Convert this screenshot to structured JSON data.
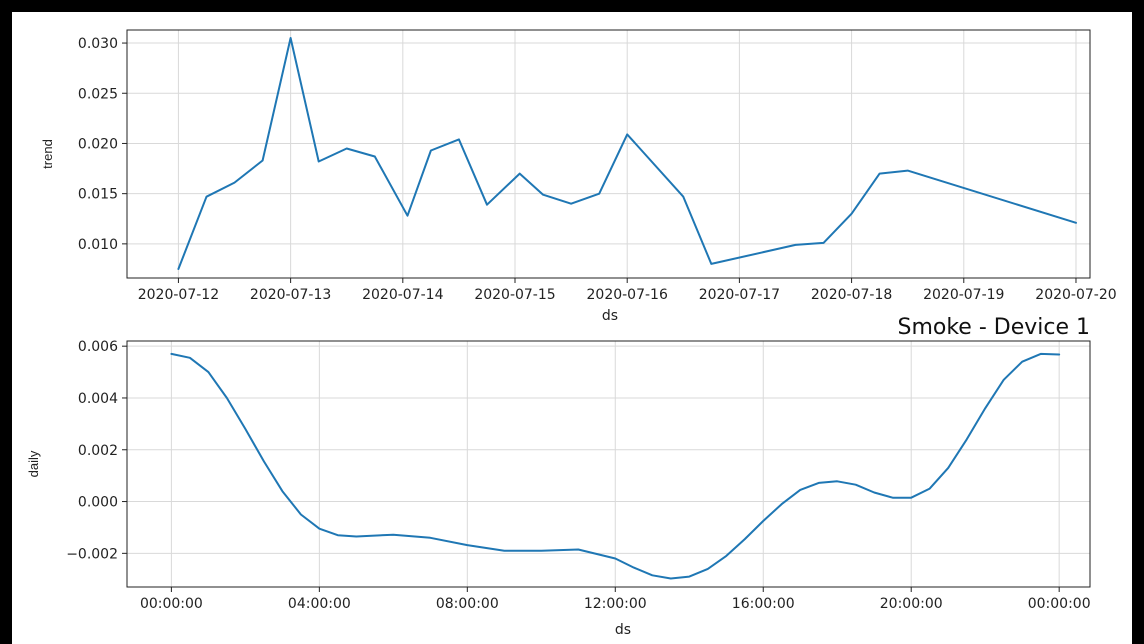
{
  "accent_color": "#1f77b4",
  "chart_data": [
    {
      "type": "line",
      "xlabel": "ds",
      "ylabel": "trend",
      "x_type": "date",
      "x_ticks": [
        "2020-07-12",
        "2020-07-13",
        "2020-07-14",
        "2020-07-15",
        "2020-07-16",
        "2020-07-17",
        "2020-07-18",
        "2020-07-19",
        "2020-07-20"
      ],
      "y_ticks": [
        "0.010",
        "0.015",
        "0.020",
        "0.025",
        "0.030"
      ],
      "xlim": [
        "2020-07-11 13:00",
        "2020-07-20 03:00"
      ],
      "ylim": [
        0.0066,
        0.0313
      ],
      "grid": true,
      "series": [
        {
          "color": "#1f77b4",
          "points": [
            [
              "2020-07-12 00:00",
              0.0075
            ],
            [
              "2020-07-12 06:00",
              0.0147
            ],
            [
              "2020-07-12 12:00",
              0.0161
            ],
            [
              "2020-07-12 18:00",
              0.0183
            ],
            [
              "2020-07-13 00:00",
              0.0305
            ],
            [
              "2020-07-13 06:00",
              0.0182
            ],
            [
              "2020-07-13 12:00",
              0.0195
            ],
            [
              "2020-07-13 18:00",
              0.0187
            ],
            [
              "2020-07-14 01:00",
              0.0128
            ],
            [
              "2020-07-14 06:00",
              0.0193
            ],
            [
              "2020-07-14 12:00",
              0.0204
            ],
            [
              "2020-07-14 18:00",
              0.0139
            ],
            [
              "2020-07-15 01:00",
              0.017
            ],
            [
              "2020-07-15 06:00",
              0.0149
            ],
            [
              "2020-07-15 12:00",
              0.014
            ],
            [
              "2020-07-15 18:00",
              0.015
            ],
            [
              "2020-07-16 00:00",
              0.0209
            ],
            [
              "2020-07-16 12:00",
              0.0147
            ],
            [
              "2020-07-16 18:00",
              0.008
            ],
            [
              "2020-07-17 12:00",
              0.0099
            ],
            [
              "2020-07-17 18:00",
              0.0101
            ],
            [
              "2020-07-18 00:00",
              0.013
            ],
            [
              "2020-07-18 06:00",
              0.017
            ],
            [
              "2020-07-18 12:00",
              0.0173
            ],
            [
              "2020-07-20 00:00",
              0.0121
            ]
          ]
        }
      ]
    },
    {
      "type": "line",
      "title": "Smoke - Device 1",
      "xlabel": "ds",
      "ylabel": "daily",
      "x_type": "time-of-day",
      "x_ticks": [
        "00:00:00",
        "04:00:00",
        "08:00:00",
        "12:00:00",
        "16:00:00",
        "20:00:00",
        "00:00:00"
      ],
      "y_ticks": [
        "−0.002",
        "0.000",
        "0.002",
        "0.004",
        "0.006"
      ],
      "xlim": [
        "-1:12",
        "24:50"
      ],
      "ylim": [
        -0.0033,
        0.0062
      ],
      "grid": true,
      "series": [
        {
          "color": "#1f77b4",
          "points": [
            [
              "00:00",
              0.0057
            ],
            [
              "00:30",
              0.00555
            ],
            [
              "01:00",
              0.005
            ],
            [
              "01:30",
              0.004
            ],
            [
              "02:00",
              0.0028
            ],
            [
              "02:30",
              0.00155
            ],
            [
              "03:00",
              0.0004
            ],
            [
              "03:30",
              -0.0005
            ],
            [
              "04:00",
              -0.00105
            ],
            [
              "04:30",
              -0.0013
            ],
            [
              "05:00",
              -0.00135
            ],
            [
              "06:00",
              -0.00128
            ],
            [
              "07:00",
              -0.0014
            ],
            [
              "08:00",
              -0.00168
            ],
            [
              "09:00",
              -0.0019
            ],
            [
              "10:00",
              -0.0019
            ],
            [
              "11:00",
              -0.00185
            ],
            [
              "12:00",
              -0.0022
            ],
            [
              "12:30",
              -0.00255
            ],
            [
              "13:00",
              -0.00285
            ],
            [
              "13:30",
              -0.00297
            ],
            [
              "14:00",
              -0.0029
            ],
            [
              "14:30",
              -0.0026
            ],
            [
              "15:00",
              -0.0021
            ],
            [
              "15:30",
              -0.00145
            ],
            [
              "16:00",
              -0.00075
            ],
            [
              "16:30",
              -0.0001
            ],
            [
              "17:00",
              0.00045
            ],
            [
              "17:30",
              0.00072
            ],
            [
              "18:00",
              0.00078
            ],
            [
              "18:30",
              0.00065
            ],
            [
              "19:00",
              0.00035
            ],
            [
              "19:30",
              0.00015
            ],
            [
              "20:00",
              0.00015
            ],
            [
              "20:30",
              0.0005
            ],
            [
              "21:00",
              0.0013
            ],
            [
              "21:30",
              0.0024
            ],
            [
              "22:00",
              0.0036
            ],
            [
              "22:30",
              0.0047
            ],
            [
              "23:00",
              0.0054
            ],
            [
              "23:30",
              0.0057
            ],
            [
              "24:00",
              0.00568
            ]
          ]
        }
      ]
    }
  ]
}
